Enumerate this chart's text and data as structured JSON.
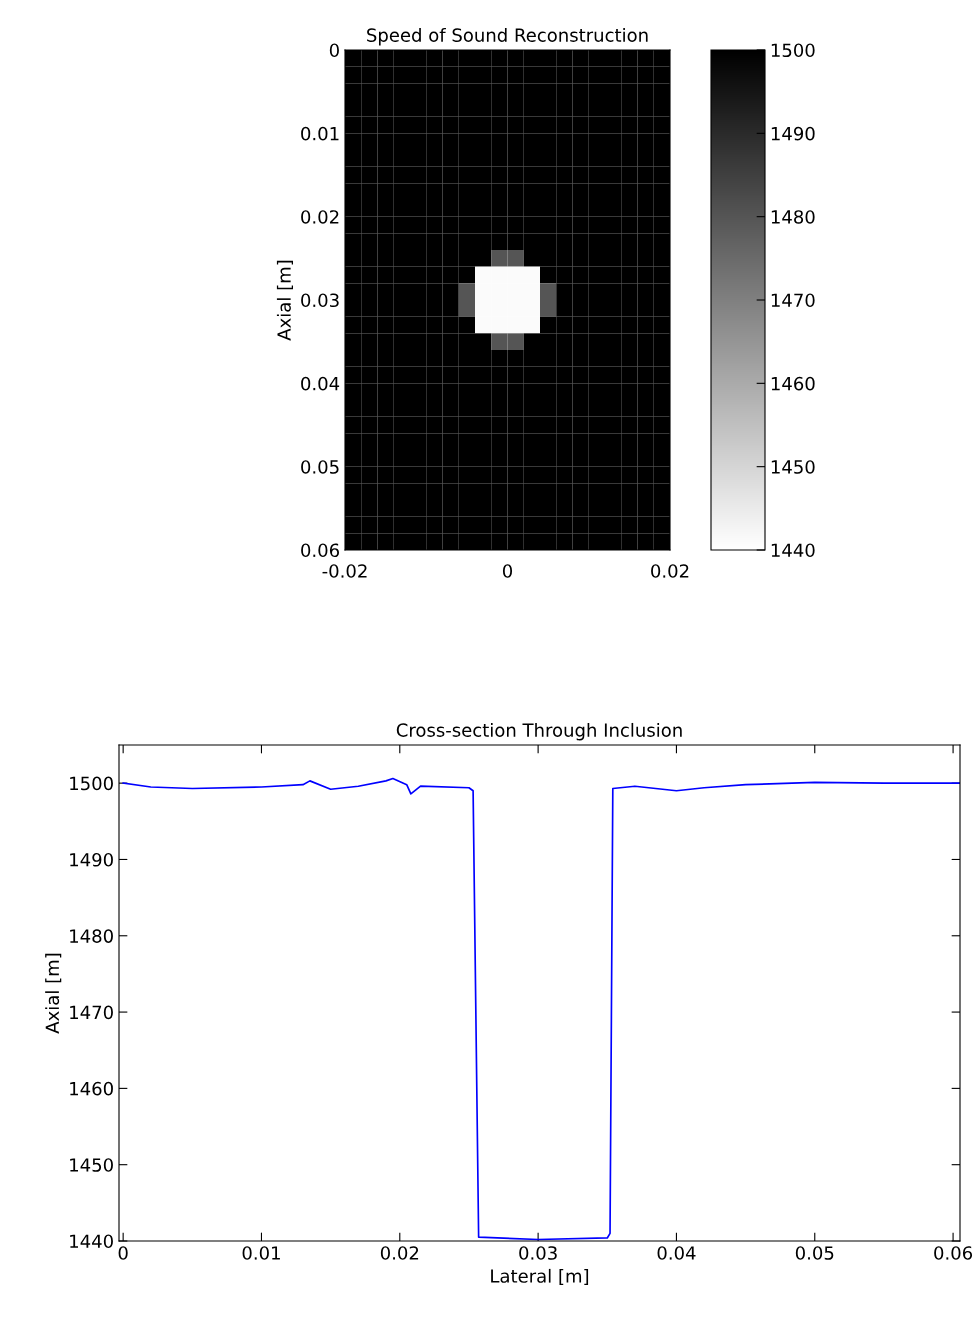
{
  "chart_data": [
    {
      "type": "heatmap",
      "title": "Speed of Sound Reconstruction",
      "ylabel": "Axial [m]",
      "cells": [
        [
          1500,
          1500,
          1500,
          1500,
          1500,
          1500,
          1500,
          1500,
          1500,
          1500,
          1500,
          1500,
          1500,
          1500,
          1500,
          1500,
          1500,
          1500,
          1500,
          1500
        ],
        [
          1500,
          1500,
          1500,
          1500,
          1500,
          1500,
          1500,
          1500,
          1500,
          1500,
          1500,
          1500,
          1500,
          1500,
          1500,
          1500,
          1500,
          1500,
          1500,
          1500
        ],
        [
          1500,
          1500,
          1500,
          1500,
          1500,
          1500,
          1500,
          1500,
          1500,
          1500,
          1500,
          1500,
          1500,
          1500,
          1500,
          1500,
          1500,
          1500,
          1500,
          1500
        ],
        [
          1500,
          1500,
          1500,
          1500,
          1500,
          1500,
          1500,
          1500,
          1500,
          1500,
          1500,
          1500,
          1500,
          1500,
          1500,
          1500,
          1500,
          1500,
          1500,
          1500
        ],
        [
          1500,
          1500,
          1500,
          1500,
          1500,
          1500,
          1500,
          1500,
          1500,
          1500,
          1500,
          1500,
          1500,
          1500,
          1500,
          1500,
          1500,
          1500,
          1500,
          1500
        ],
        [
          1500,
          1500,
          1500,
          1500,
          1500,
          1500,
          1500,
          1500,
          1500,
          1500,
          1500,
          1500,
          1500,
          1500,
          1500,
          1500,
          1500,
          1500,
          1500,
          1500
        ],
        [
          1500,
          1500,
          1500,
          1500,
          1500,
          1500,
          1500,
          1500,
          1500,
          1500,
          1500,
          1500,
          1500,
          1500,
          1500,
          1500,
          1500,
          1500,
          1500,
          1500
        ],
        [
          1500,
          1500,
          1500,
          1500,
          1500,
          1500,
          1500,
          1500,
          1500,
          1500,
          1500,
          1500,
          1500,
          1500,
          1500,
          1500,
          1500,
          1500,
          1500,
          1500
        ],
        [
          1500,
          1500,
          1500,
          1500,
          1500,
          1500,
          1500,
          1500,
          1500,
          1500,
          1500,
          1500,
          1500,
          1500,
          1500,
          1500,
          1500,
          1500,
          1500,
          1500
        ],
        [
          1500,
          1500,
          1500,
          1500,
          1500,
          1500,
          1500,
          1500,
          1500,
          1500,
          1500,
          1500,
          1500,
          1500,
          1500,
          1500,
          1500,
          1500,
          1500,
          1500
        ],
        [
          1500,
          1500,
          1500,
          1500,
          1500,
          1500,
          1500,
          1500,
          1500,
          1500,
          1500,
          1500,
          1500,
          1500,
          1500,
          1500,
          1500,
          1500,
          1500,
          1500
        ],
        [
          1500,
          1500,
          1500,
          1500,
          1500,
          1500,
          1500,
          1500,
          1500,
          1500,
          1500,
          1500,
          1500,
          1500,
          1500,
          1500,
          1500,
          1500,
          1500,
          1500
        ],
        [
          1500,
          1500,
          1500,
          1500,
          1500,
          1500,
          1500,
          1500,
          1500,
          1480,
          1480,
          1500,
          1500,
          1500,
          1500,
          1500,
          1500,
          1500,
          1500,
          1500
        ],
        [
          1500,
          1500,
          1500,
          1500,
          1500,
          1500,
          1500,
          1500,
          1441,
          1441,
          1441,
          1441,
          1500,
          1500,
          1500,
          1500,
          1500,
          1500,
          1500,
          1500
        ],
        [
          1500,
          1500,
          1500,
          1500,
          1500,
          1500,
          1500,
          1480,
          1441,
          1441,
          1441,
          1441,
          1480,
          1500,
          1500,
          1500,
          1500,
          1500,
          1500,
          1500
        ],
        [
          1500,
          1500,
          1500,
          1500,
          1500,
          1500,
          1500,
          1480,
          1441,
          1441,
          1441,
          1441,
          1480,
          1500,
          1500,
          1500,
          1500,
          1500,
          1500,
          1500
        ],
        [
          1500,
          1500,
          1500,
          1500,
          1500,
          1500,
          1500,
          1500,
          1441,
          1441,
          1441,
          1441,
          1500,
          1500,
          1500,
          1500,
          1500,
          1500,
          1500,
          1500
        ],
        [
          1500,
          1500,
          1500,
          1500,
          1500,
          1500,
          1500,
          1500,
          1500,
          1480,
          1480,
          1500,
          1500,
          1500,
          1500,
          1500,
          1500,
          1500,
          1500,
          1500
        ],
        [
          1500,
          1500,
          1500,
          1500,
          1500,
          1500,
          1500,
          1500,
          1500,
          1500,
          1500,
          1500,
          1500,
          1500,
          1500,
          1500,
          1500,
          1500,
          1500,
          1500
        ],
        [
          1500,
          1500,
          1500,
          1500,
          1500,
          1500,
          1500,
          1500,
          1500,
          1500,
          1500,
          1500,
          1500,
          1500,
          1500,
          1500,
          1500,
          1500,
          1500,
          1500
        ],
        [
          1500,
          1500,
          1500,
          1500,
          1500,
          1500,
          1500,
          1500,
          1500,
          1500,
          1500,
          1500,
          1500,
          1500,
          1500,
          1500,
          1500,
          1500,
          1500,
          1500
        ],
        [
          1500,
          1500,
          1500,
          1500,
          1500,
          1500,
          1500,
          1500,
          1500,
          1500,
          1500,
          1500,
          1500,
          1500,
          1500,
          1500,
          1500,
          1500,
          1500,
          1500
        ],
        [
          1500,
          1500,
          1500,
          1500,
          1500,
          1500,
          1500,
          1500,
          1500,
          1500,
          1500,
          1500,
          1500,
          1500,
          1500,
          1500,
          1500,
          1500,
          1500,
          1500
        ],
        [
          1500,
          1500,
          1500,
          1500,
          1500,
          1500,
          1500,
          1500,
          1500,
          1500,
          1500,
          1500,
          1500,
          1500,
          1500,
          1500,
          1500,
          1500,
          1500,
          1500
        ],
        [
          1500,
          1500,
          1500,
          1500,
          1500,
          1500,
          1500,
          1500,
          1500,
          1500,
          1500,
          1500,
          1500,
          1500,
          1500,
          1500,
          1500,
          1500,
          1500,
          1500
        ],
        [
          1500,
          1500,
          1500,
          1500,
          1500,
          1500,
          1500,
          1500,
          1500,
          1500,
          1500,
          1500,
          1500,
          1500,
          1500,
          1500,
          1500,
          1500,
          1500,
          1500
        ],
        [
          1500,
          1500,
          1500,
          1500,
          1500,
          1500,
          1500,
          1500,
          1500,
          1500,
          1500,
          1500,
          1500,
          1500,
          1500,
          1500,
          1500,
          1500,
          1500,
          1500
        ],
        [
          1500,
          1500,
          1500,
          1500,
          1500,
          1500,
          1500,
          1500,
          1500,
          1500,
          1500,
          1500,
          1500,
          1500,
          1500,
          1500,
          1500,
          1500,
          1500,
          1500
        ],
        [
          1500,
          1500,
          1500,
          1500,
          1500,
          1500,
          1500,
          1500,
          1500,
          1500,
          1500,
          1500,
          1500,
          1500,
          1500,
          1500,
          1500,
          1500,
          1500,
          1500
        ],
        [
          1500,
          1500,
          1500,
          1500,
          1500,
          1500,
          1500,
          1500,
          1500,
          1500,
          1500,
          1500,
          1500,
          1500,
          1500,
          1500,
          1500,
          1500,
          1500,
          1500
        ]
      ],
      "xlim": [
        -0.02,
        0.02
      ],
      "xticks": [
        -0.02,
        0,
        0.02
      ],
      "ylim": [
        0.06,
        0
      ],
      "yticks": [
        0,
        0.01,
        0.02,
        0.03,
        0.04,
        0.05,
        0.06
      ],
      "clim": [
        1440,
        1500
      ],
      "cticks": [
        1440,
        1450,
        1460,
        1470,
        1480,
        1490,
        1500
      ]
    },
    {
      "type": "line",
      "title": "Cross-section Through Inclusion",
      "xlabel": "Lateral [m]",
      "ylabel": "Axial [m]",
      "x": [
        0,
        0.002,
        0.005,
        0.01,
        0.013,
        0.0135,
        0.015,
        0.017,
        0.019,
        0.0195,
        0.0205,
        0.0208,
        0.0215,
        0.025,
        0.0253,
        0.0255,
        0.0257,
        0.03,
        0.035,
        0.0352,
        0.0354,
        0.037,
        0.04,
        0.042,
        0.045,
        0.05,
        0.055,
        0.0605
      ],
      "series": [
        {
          "color": "#0000ff",
          "values": [
            1500,
            1499.5,
            1499.3,
            1499.5,
            1499.8,
            1500.3,
            1499.2,
            1499.6,
            1500.3,
            1500.6,
            1499.8,
            1498.6,
            1499.6,
            1499.4,
            1499.0,
            1469.7,
            1440.5,
            1440.2,
            1440.4,
            1441,
            1499.3,
            1499.6,
            1499.0,
            1499.4,
            1499.8,
            1500.1,
            1500.0,
            1500.0
          ]
        }
      ],
      "xlim": [
        -0.0003,
        0.0605
      ],
      "xticks": [
        0,
        0.01,
        0.02,
        0.03,
        0.04,
        0.05,
        0.06
      ],
      "ylim": [
        1440,
        1505
      ],
      "yticks": [
        1440,
        1450,
        1460,
        1470,
        1480,
        1490,
        1500
      ]
    }
  ]
}
